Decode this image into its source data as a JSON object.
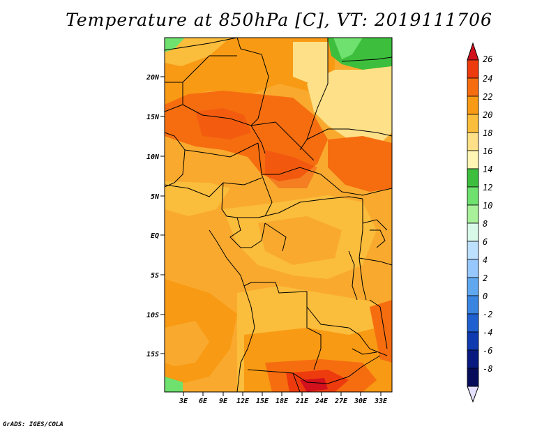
{
  "title": "Temperature at 850hPa [C], VT: 2019111706",
  "footer": "GrADS: IGES/COLA",
  "map": {
    "lat_labels": [
      "20N",
      "15N",
      "10N",
      "5N",
      "EQ",
      "5S",
      "10S",
      "15S"
    ],
    "lon_labels": [
      "3E",
      "6E",
      "9E",
      "12E",
      "15E",
      "18E",
      "21E",
      "24E",
      "27E",
      "30E",
      "33E"
    ]
  },
  "colorbar": {
    "labels": [
      "26",
      "24",
      "22",
      "20",
      "18",
      "16",
      "14",
      "12",
      "10",
      "8",
      "6",
      "4",
      "2",
      "0",
      "-2",
      "-4",
      "-6",
      "-8"
    ],
    "colors": [
      "#d2111c",
      "#ee3b0e",
      "#f66d10",
      "#f89a14",
      "#fbbd3c",
      "#fde087",
      "#fff5b4",
      "#3dbf3d",
      "#6ee16e",
      "#a8f09a",
      "#d8f8e8",
      "#bde0ff",
      "#96c8ff",
      "#5fa8f0",
      "#3a85e0",
      "#1f5fd0",
      "#0f3ab0",
      "#081a80",
      "#060b5a",
      "#e6e0ff"
    ]
  }
}
